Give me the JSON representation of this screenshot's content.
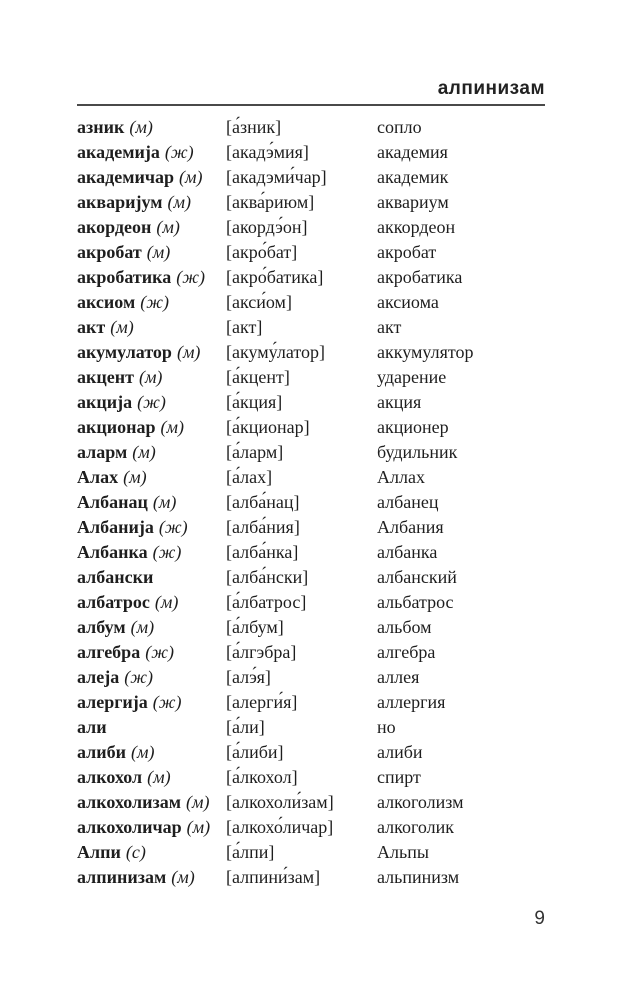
{
  "header": {
    "running_title": "алпинизам"
  },
  "footer": {
    "page_number": "9"
  },
  "entries": [
    {
      "word": "азник",
      "gender": "(м)",
      "pronunciation": "[а́зник]",
      "translation": "сопло"
    },
    {
      "word": "академија",
      "gender": "(ж)",
      "pronunciation": "[акадэ́мия]",
      "translation": "академия"
    },
    {
      "word": "академичар",
      "gender": "(м)",
      "pronunciation": "[акадэми́чар]",
      "translation": "академик"
    },
    {
      "word": "акваријум",
      "gender": "(м)",
      "pronunciation": "[аква́риюм]",
      "translation": "аквариум"
    },
    {
      "word": "акордеон",
      "gender": "(м)",
      "pronunciation": "[акордэ́он]",
      "translation": "аккордеон"
    },
    {
      "word": "акробат",
      "gender": "(м)",
      "pronunciation": "[акро́бат]",
      "translation": "акробат"
    },
    {
      "word": "акробатика",
      "gender": "(ж)",
      "pronunciation": "[акро́батика]",
      "translation": "акробатика"
    },
    {
      "word": "аксиом",
      "gender": "(ж)",
      "pronunciation": "[акси́ом]",
      "translation": "аксиома"
    },
    {
      "word": "акт",
      "gender": "(м)",
      "pronunciation": "[акт]",
      "translation": "акт"
    },
    {
      "word": "акумулатор",
      "gender": "(м)",
      "pronunciation": "[акуму́латор]",
      "translation": "аккумулятор"
    },
    {
      "word": "акцент",
      "gender": "(м)",
      "pronunciation": "[а́кцент]",
      "translation": "ударение"
    },
    {
      "word": "акција",
      "gender": "(ж)",
      "pronunciation": "[а́кция]",
      "translation": "акция"
    },
    {
      "word": "акционар",
      "gender": "(м)",
      "pronunciation": "[а́кционар]",
      "translation": "акционер"
    },
    {
      "word": "аларм",
      "gender": "(м)",
      "pronunciation": "[а́ларм]",
      "translation": "будильник"
    },
    {
      "word": "Алах",
      "gender": "(м)",
      "pronunciation": "[а́лах]",
      "translation": "Аллах"
    },
    {
      "word": "Албанац",
      "gender": "(м)",
      "pronunciation": "[алба́нац]",
      "translation": "албанец"
    },
    {
      "word": "Албанија",
      "gender": "(ж)",
      "pronunciation": "[алба́ния]",
      "translation": "Албания"
    },
    {
      "word": "Албанка",
      "gender": "(ж)",
      "pronunciation": "[алба́нка]",
      "translation": "албанка"
    },
    {
      "word": "албански",
      "gender": "",
      "pronunciation": "[алба́нски]",
      "translation": "албанский"
    },
    {
      "word": "албатрос",
      "gender": "(м)",
      "pronunciation": "[а́лбатрос]",
      "translation": "альбатрос"
    },
    {
      "word": "албум",
      "gender": "(м)",
      "pronunciation": "[а́лбум]",
      "translation": "альбом"
    },
    {
      "word": "алгебра",
      "gender": "(ж)",
      "pronunciation": "[а́лгэбра]",
      "translation": "алгебра"
    },
    {
      "word": "алеја",
      "gender": "(ж)",
      "pronunciation": "[алэ́я]",
      "translation": "аллея"
    },
    {
      "word": "алергија",
      "gender": "(ж)",
      "pronunciation": "[алерги́я]",
      "translation": "аллергия"
    },
    {
      "word": "али",
      "gender": "",
      "pronunciation": "[а́ли]",
      "translation": "но"
    },
    {
      "word": "алиби",
      "gender": "(м)",
      "pronunciation": "[а́либи]",
      "translation": "алиби"
    },
    {
      "word": "алкохол",
      "gender": "(м)",
      "pronunciation": "[а́лкохол]",
      "translation": "спирт"
    },
    {
      "word": "алкохолизам",
      "gender": "(м)",
      "pronunciation": "[алкохоли́зам]",
      "translation": "алкоголизм"
    },
    {
      "word": "алкохоличар",
      "gender": "(м)",
      "pronunciation": "[алкохо́личар]",
      "translation": "алкоголик"
    },
    {
      "word": "Алпи",
      "gender": "(с)",
      "pronunciation": "[а́лпи]",
      "translation": "Альпы"
    },
    {
      "word": "алпинизам",
      "gender": "(м)",
      "pronunciation": "[алпини́зам]",
      "translation": "альпинизм"
    }
  ]
}
